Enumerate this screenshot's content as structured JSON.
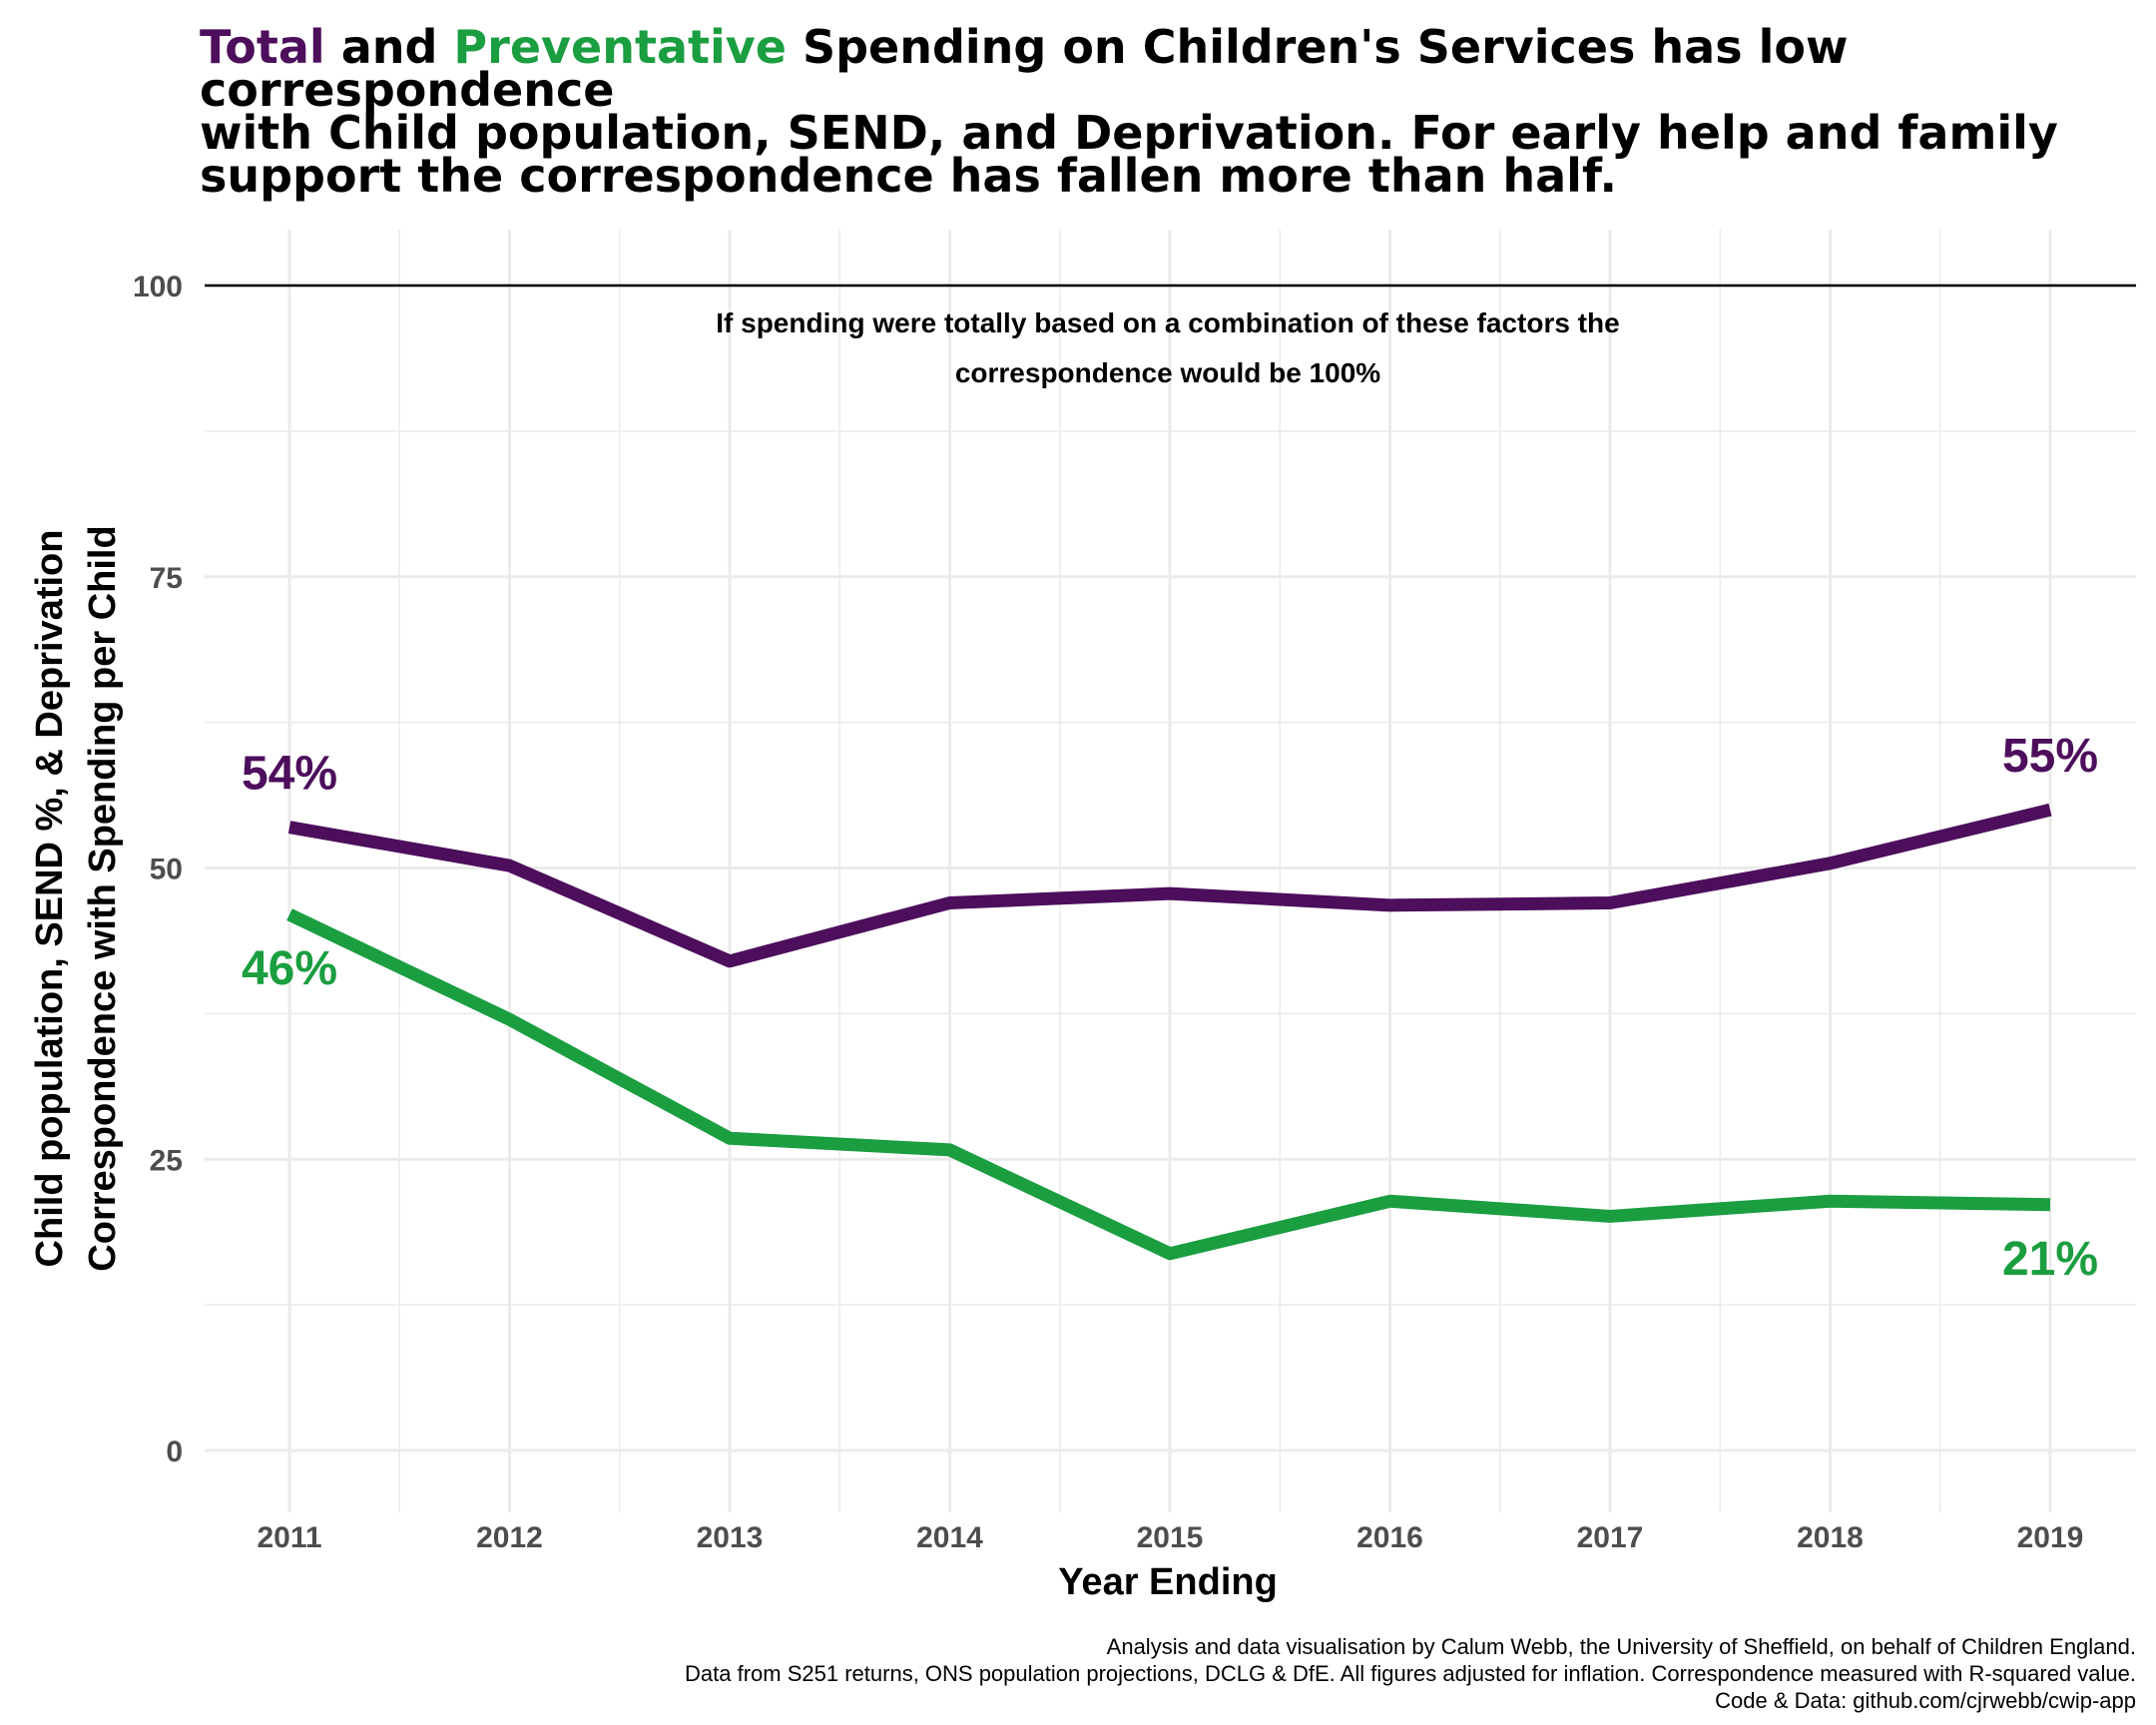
{
  "title": {
    "word_total": "Total",
    "word_and": "and",
    "word_preventative": "Preventative",
    "line1_rest": "Spending on Children's Services has low correspondence",
    "line2": "with Child population, SEND, and Deprivation. For early help and family",
    "line3": "support the correspondence has fallen more than half."
  },
  "caption": {
    "line1": "Analysis and data visualisation by Calum Webb, the University of Sheffield, on behalf of Children England.",
    "line2": "Data from S251 returns, ONS population projections, DCLG & DfE. All figures adjusted for inflation. Correspondence measured with R-squared value.",
    "line3": "Code & Data: github.com/cjrwebb/cwip-app"
  },
  "colors": {
    "total": "#4d0e5c",
    "preventative": "#1a9e40",
    "grid": "#ebebeb",
    "reference_line": "#000000",
    "axis_text": "#4d4d4d"
  },
  "chart_data": {
    "type": "line",
    "title": "Total and Preventative Spending on Children's Services has low correspondence with Child population, SEND, and Deprivation. For early help and family support the correspondence has fallen more than half.",
    "xlabel": "Year Ending",
    "ylabel_line1": "Child population, SEND %, & Deprivation",
    "ylabel_line2": "Correspondence with Spending per Child",
    "x": [
      "2011",
      "2012",
      "2013",
      "2014",
      "2015",
      "2016",
      "2017",
      "2018",
      "2019"
    ],
    "ylim": [
      0,
      100
    ],
    "yticks": [
      0,
      25,
      50,
      75,
      100
    ],
    "grid": true,
    "legend": "none",
    "series": [
      {
        "name": "Total",
        "color": "#4d0e5c",
        "values": [
          53.5,
          50.2,
          42.0,
          47.0,
          47.8,
          46.8,
          47.0,
          50.4,
          55.0
        ],
        "start_label": "54%",
        "end_label": "55%"
      },
      {
        "name": "Preventative",
        "color": "#1a9e40",
        "values": [
          46.0,
          37.0,
          26.8,
          25.8,
          16.9,
          21.4,
          20.1,
          21.4,
          21.1
        ],
        "start_label": "46%",
        "end_label": "21%"
      }
    ],
    "reference_line": {
      "y": 100
    },
    "annotation": {
      "line1": "If spending were totally based on a combination of these factors the",
      "line2": "correspondence would be 100%"
    }
  }
}
